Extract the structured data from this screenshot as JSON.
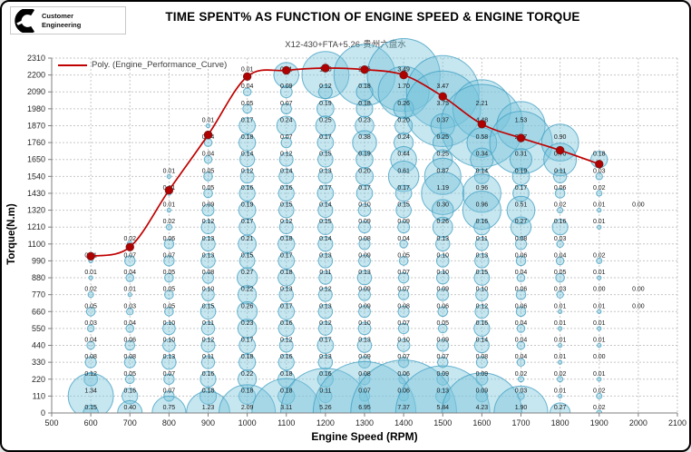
{
  "header": {
    "logo_line1": "Customer",
    "logo_line2": "Engineering",
    "title": "TIME SPENT% AS FUNCTION OF ENGINE SPEED & ENGINE TORQUE",
    "subtitle": "X12-430+FTA+5.26-贵州六盘水"
  },
  "chart_data": {
    "type": "bubble",
    "title": "TIME SPENT% AS FUNCTION OF ENGINE SPEED & ENGINE TORQUE",
    "subtitle": "X12-430+FTA+5.26-贵州六盘水",
    "xlabel": "Engine Speed (RPM)",
    "ylabel": "Torque(N.m)",
    "legend": [
      {
        "label": "Poly. (Engine_Performance_Curve)",
        "color": "#c00000"
      }
    ],
    "xlim": [
      500,
      2100
    ],
    "ylim": [
      0,
      2310
    ],
    "x_ticks": [
      500,
      600,
      700,
      800,
      900,
      1000,
      1100,
      1200,
      1300,
      1400,
      1500,
      1600,
      1700,
      1800,
      1900,
      2000,
      2100
    ],
    "y_ticks": [
      0,
      110,
      220,
      330,
      440,
      550,
      660,
      770,
      880,
      990,
      1100,
      1210,
      1320,
      1430,
      1540,
      1650,
      1760,
      1870,
      1980,
      2090,
      2200,
      2310
    ],
    "grid": "dashed",
    "rpm_columns": [
      600,
      700,
      800,
      900,
      1000,
      1100,
      1200,
      1300,
      1400,
      1500,
      1600,
      1700,
      1800,
      1900,
      2000
    ],
    "torque_rows": [
      2200,
      2090,
      1980,
      1870,
      1760,
      1650,
      1540,
      1430,
      1320,
      1210,
      1100,
      990,
      880,
      770,
      660,
      550,
      440,
      330,
      220,
      110,
      0
    ],
    "time_spent_percent": [
      [
        null,
        null,
        null,
        null,
        0.01,
        0.41,
        1.45,
        2.46,
        3.49,
        null,
        null,
        null,
        null,
        null,
        null
      ],
      [
        null,
        null,
        null,
        null,
        0.04,
        0.09,
        0.12,
        0.18,
        1.7,
        3.47,
        null,
        null,
        null,
        null,
        null
      ],
      [
        null,
        null,
        null,
        null,
        0.05,
        0.07,
        0.19,
        0.18,
        0.26,
        3.75,
        2.21,
        null,
        null,
        null,
        null
      ],
      [
        null,
        null,
        null,
        0.01,
        0.17,
        0.24,
        0.25,
        0.23,
        0.2,
        0.37,
        4.48,
        1.53,
        null,
        null,
        null
      ],
      [
        null,
        null,
        null,
        0.04,
        0.18,
        0.07,
        0.17,
        0.38,
        0.24,
        0.25,
        0.58,
        2.57,
        0.9,
        null,
        null
      ],
      [
        null,
        null,
        null,
        0.04,
        0.14,
        0.12,
        0.15,
        0.19,
        0.44,
        0.25,
        0.34,
        0.31,
        0.7,
        0.18,
        null
      ],
      [
        null,
        null,
        0.01,
        0.05,
        0.12,
        0.14,
        0.13,
        0.2,
        0.61,
        0.87,
        0.14,
        0.19,
        0.11,
        0.03,
        null
      ],
      [
        null,
        null,
        0.01,
        0.05,
        0.16,
        0.16,
        0.17,
        0.17,
        0.17,
        1.19,
        0.96,
        0.17,
        0.06,
        0.02,
        null
      ],
      [
        null,
        null,
        0.01,
        0.09,
        0.19,
        0.15,
        0.14,
        0.1,
        0.15,
        0.3,
        0.96,
        0.51,
        0.02,
        0.01,
        0.0
      ],
      [
        null,
        null,
        0.02,
        0.12,
        0.17,
        0.12,
        0.15,
        0.09,
        0.09,
        0.26,
        0.16,
        0.27,
        0.16,
        0.01,
        null
      ],
      [
        null,
        0.02,
        0.06,
        0.13,
        0.21,
        0.18,
        0.14,
        0.08,
        0.04,
        0.13,
        0.11,
        0.08,
        0.03,
        null,
        null
      ],
      [
        0.01,
        0.07,
        0.07,
        0.13,
        0.15,
        0.17,
        0.13,
        0.09,
        0.05,
        0.1,
        0.13,
        0.06,
        0.04,
        0.02,
        null
      ],
      [
        0.01,
        0.04,
        0.05,
        0.08,
        0.27,
        0.18,
        0.11,
        0.13,
        0.07,
        0.1,
        0.15,
        0.04,
        0.05,
        0.01,
        null
      ],
      [
        0.02,
        0.01,
        0.05,
        0.1,
        0.22,
        0.13,
        0.12,
        0.09,
        0.07,
        0.09,
        0.1,
        0.06,
        0.03,
        0.0,
        0.0
      ],
      [
        0.05,
        0.03,
        0.05,
        0.15,
        0.26,
        0.17,
        0.13,
        0.09,
        0.08,
        0.06,
        0.12,
        0.06,
        0.01,
        0.01,
        0.0
      ],
      [
        0.03,
        0.04,
        0.1,
        0.11,
        0.23,
        0.16,
        0.12,
        0.1,
        0.07,
        0.05,
        0.16,
        0.04,
        0.01,
        0.01,
        null
      ],
      [
        0.04,
        0.06,
        0.1,
        0.12,
        0.17,
        0.12,
        0.17,
        0.13,
        0.1,
        0.09,
        0.14,
        0.04,
        0.01,
        0.01,
        null
      ],
      [
        0.08,
        0.08,
        0.13,
        0.11,
        0.18,
        0.16,
        0.13,
        0.09,
        0.07,
        0.07,
        0.08,
        0.04,
        0.01,
        0.0,
        null
      ],
      [
        0.12,
        0.05,
        0.07,
        0.16,
        0.22,
        0.18,
        0.16,
        0.08,
        0.06,
        0.09,
        0.09,
        0.02,
        0.02,
        0.01,
        null
      ],
      [
        1.34,
        0.16,
        0.07,
        0.18,
        0.18,
        0.18,
        0.11,
        0.07,
        0.06,
        0.13,
        0.09,
        0.03,
        0.01,
        0.02,
        null
      ],
      [
        0.15,
        0.4,
        0.75,
        1.23,
        2.09,
        3.11,
        5.26,
        6.95,
        7.37,
        5.84,
        4.23,
        1.9,
        0.27,
        0.02,
        null
      ]
    ],
    "performance_curve": {
      "name": "Engine_Performance_Curve",
      "x": [
        600,
        700,
        800,
        900,
        1000,
        1100,
        1200,
        1300,
        1400,
        1500,
        1600,
        1700,
        1800,
        1900
      ],
      "y": [
        1020,
        1080,
        1450,
        1810,
        2190,
        2230,
        2245,
        2235,
        2200,
        2060,
        1880,
        1790,
        1710,
        1620
      ]
    },
    "colors": {
      "bubble_fill": "#76c3db",
      "bubble_stroke": "#3e9ec0",
      "curve": "#c00000",
      "marker": "#b00000",
      "grid": "#c6c6c6",
      "axis": "#7f7f7f",
      "label_text": "#1a1a1a"
    }
  }
}
